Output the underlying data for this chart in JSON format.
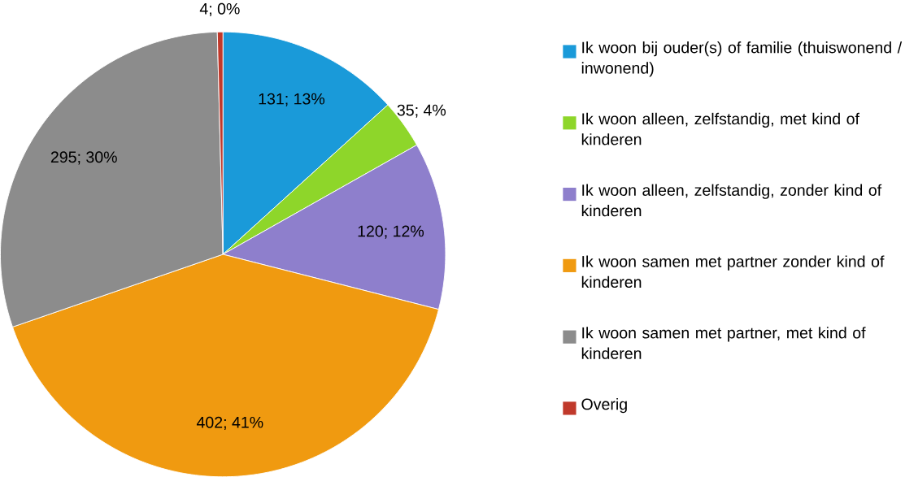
{
  "chart_data": {
    "type": "pie",
    "categories": [
      "Ik woon bij ouder(s) of familie (thuiswonend / inwonend)",
      "Ik woon alleen, zelfstandig, met kind of kinderen",
      "Ik woon alleen, zelfstandig, zonder kind of kinderen",
      "Ik woon samen met partner zonder kind of kinderen",
      "Ik woon samen met partner, met kind of kinderen",
      "Overig"
    ],
    "values": [
      131,
      35,
      120,
      402,
      295,
      4
    ],
    "colors": [
      "#1a9ad9",
      "#8ed62a",
      "#8e7fcc",
      "#f09a10",
      "#8c8c8c",
      "#c0392b"
    ],
    "value_labels": [
      "131; 13%",
      "35; 4%",
      "120; 12%",
      "402; 41%",
      "295; 30%",
      "4; 0%"
    ],
    "legend": "right"
  }
}
